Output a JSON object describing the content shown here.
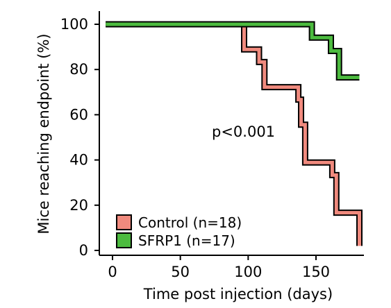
{
  "chart_data": {
    "type": "line",
    "step": true,
    "title": "",
    "xlabel": "Time post injection (days)",
    "ylabel": "Mice reaching endpoint (%)",
    "xlim": [
      -5,
      185
    ],
    "ylim": [
      0,
      100
    ],
    "xticks": [
      0,
      50,
      100,
      150
    ],
    "yticks": [
      0,
      20,
      40,
      60,
      80,
      100
    ],
    "xtick_labels": [
      "0",
      "50",
      "100",
      "150"
    ],
    "ytick_labels": [
      "0",
      "20",
      "40",
      "60",
      "80",
      "100"
    ],
    "grid": false,
    "legend_position": "bottom-left",
    "annotation": "p<0.001",
    "series": [
      {
        "name": "Control (n=18)",
        "color": "#f08a7e",
        "points": [
          [
            -5,
            100
          ],
          [
            97,
            100
          ],
          [
            97,
            88.9
          ],
          [
            108,
            88.9
          ],
          [
            108,
            83.3
          ],
          [
            112,
            83.3
          ],
          [
            112,
            72.2
          ],
          [
            137,
            72.2
          ],
          [
            137,
            66.7
          ],
          [
            139,
            66.7
          ],
          [
            139,
            55.6
          ],
          [
            142,
            55.6
          ],
          [
            142,
            38.9
          ],
          [
            162,
            38.9
          ],
          [
            162,
            33.3
          ],
          [
            165,
            33.3
          ],
          [
            165,
            16.7
          ],
          [
            182,
            16.7
          ],
          [
            182,
            2
          ]
        ]
      },
      {
        "name": "SFRP1 (n=17)",
        "color": "#4cbb3f",
        "points": [
          [
            -5,
            100
          ],
          [
            147,
            100
          ],
          [
            147,
            94.1
          ],
          [
            161,
            94.1
          ],
          [
            161,
            88.2
          ],
          [
            167,
            88.2
          ],
          [
            167,
            76.5
          ],
          [
            182,
            76.5
          ]
        ]
      }
    ]
  }
}
